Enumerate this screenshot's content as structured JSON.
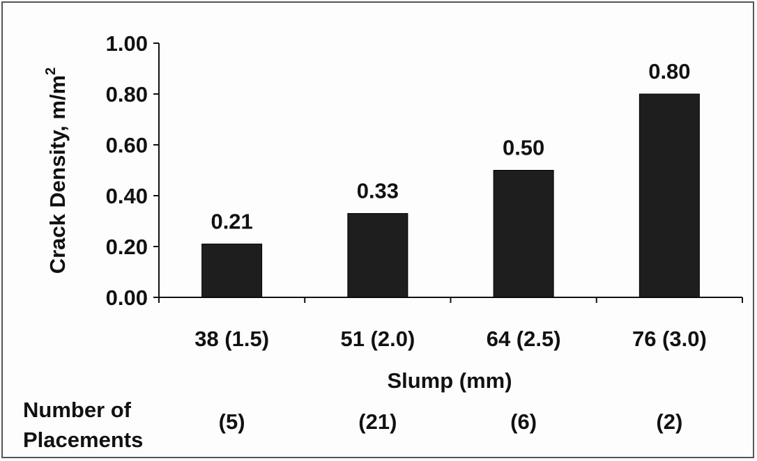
{
  "chart_data": {
    "type": "bar",
    "categories": [
      "38 (1.5)",
      "51 (2.0)",
      "64 (2.5)",
      "76 (3.0)"
    ],
    "values": [
      0.21,
      0.33,
      0.5,
      0.8
    ],
    "data_labels": [
      "0.21",
      "0.33",
      "0.50",
      "0.80"
    ],
    "y_ticks": [
      "0.00",
      "0.20",
      "0.40",
      "0.60",
      "0.80",
      "1.00"
    ],
    "ylim": [
      0,
      1.0
    ],
    "xlabel": "Slump (mm)",
    "ylabel_main": "Crack Density, m/m",
    "ylabel_superscript": "2",
    "placements_label_line1": "Number of",
    "placements_label_line2": "Placements",
    "placements": [
      "(5)",
      "(21)",
      "(6)",
      "(2)"
    ],
    "bar_color": "#1e1e1e",
    "legend": "none",
    "grid": false
  }
}
